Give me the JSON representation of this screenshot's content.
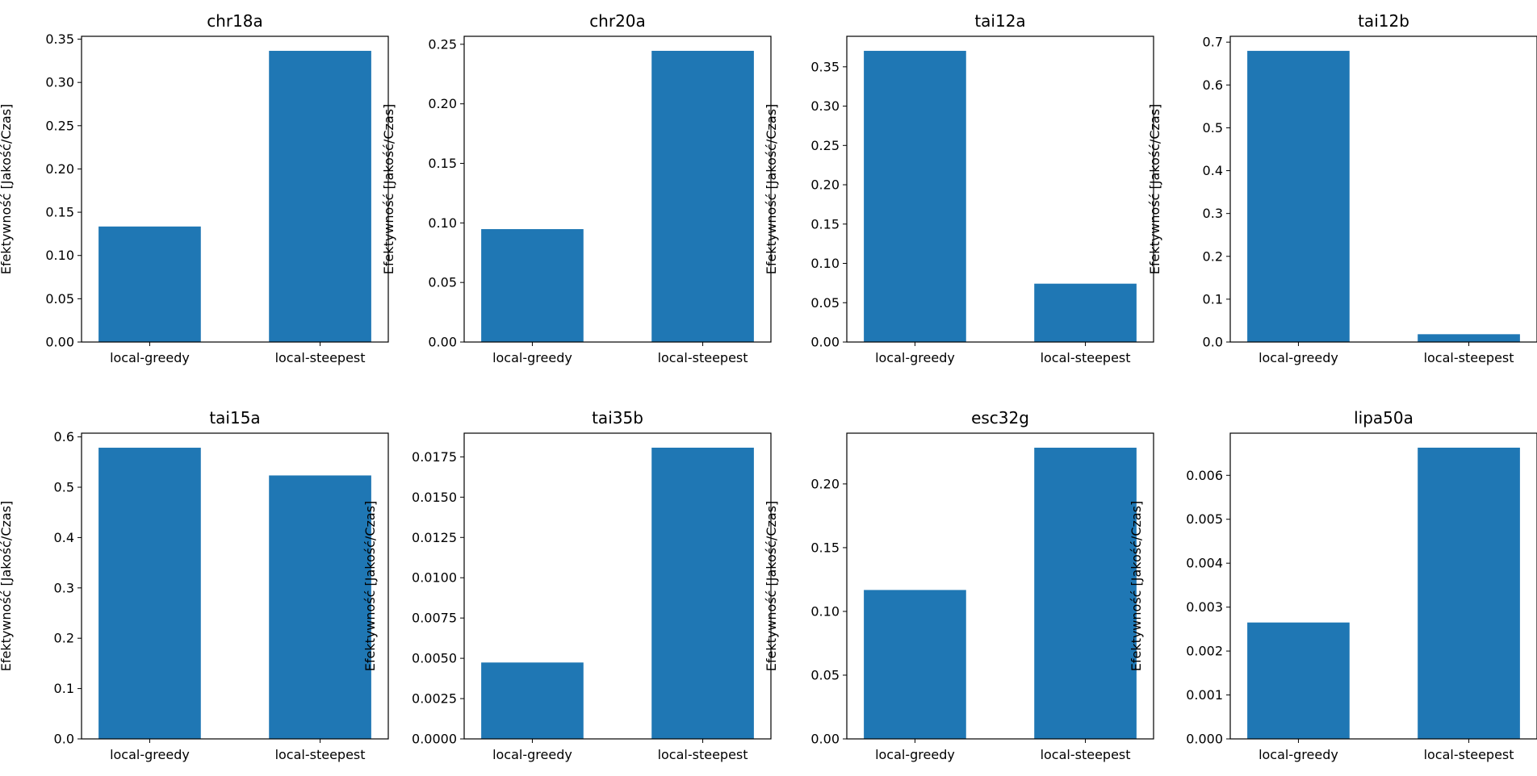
{
  "chart_data": [
    {
      "type": "bar",
      "title": "chr18a",
      "categories": [
        "local-greedy",
        "local-steepest"
      ],
      "values": [
        0.1335,
        0.3365
      ],
      "ylabel": "Efektywność [Jakość/Czas]",
      "ylim": [
        0,
        0.3533
      ],
      "yticks": [
        "0.00",
        "0.05",
        "0.10",
        "0.15",
        "0.20",
        "0.25",
        "0.30",
        "0.35"
      ],
      "color": "#1f77b4"
    },
    {
      "type": "bar",
      "title": "chr20a",
      "categories": [
        "local-greedy",
        "local-steepest"
      ],
      "values": [
        0.0948,
        0.2445
      ],
      "ylabel": "Efektywność [Jakość/Czas]",
      "ylim": [
        0,
        0.2567
      ],
      "yticks": [
        "0.00",
        "0.05",
        "0.10",
        "0.15",
        "0.20",
        "0.25"
      ],
      "color": "#1f77b4"
    },
    {
      "type": "bar",
      "title": "tai12a",
      "categories": [
        "local-greedy",
        "local-steepest"
      ],
      "values": [
        0.3703,
        0.0742
      ],
      "ylabel": "Efektywność [Jakość/Czas]",
      "ylim": [
        0,
        0.3888
      ],
      "yticks": [
        "0.00",
        "0.05",
        "0.10",
        "0.15",
        "0.20",
        "0.25",
        "0.30",
        "0.35"
      ],
      "color": "#1f77b4"
    },
    {
      "type": "bar",
      "title": "tai12b",
      "categories": [
        "local-greedy",
        "local-steepest"
      ],
      "values": [
        0.6796,
        0.0182
      ],
      "ylabel": "Efektywność [Jakość/Czas]",
      "ylim": [
        0,
        0.7136
      ],
      "yticks": [
        "0.0",
        "0.1",
        "0.2",
        "0.3",
        "0.4",
        "0.5",
        "0.6",
        "0.7"
      ],
      "color": "#1f77b4"
    },
    {
      "type": "bar",
      "title": "tai15a",
      "categories": [
        "local-greedy",
        "local-steepest"
      ],
      "values": [
        0.5785,
        0.5234
      ],
      "ylabel": "Efektywność [Jakość/Czas]",
      "ylim": [
        0,
        0.6074
      ],
      "yticks": [
        "0.0",
        "0.1",
        "0.2",
        "0.3",
        "0.4",
        "0.5",
        "0.6"
      ],
      "color": "#1f77b4"
    },
    {
      "type": "bar",
      "title": "tai35b",
      "categories": [
        "local-greedy",
        "local-steepest"
      ],
      "values": [
        0.00474,
        0.01807
      ],
      "ylabel": "Efektywność [Jakość/Czas]",
      "ylim": [
        0,
        0.01897
      ],
      "yticks": [
        "0.0000",
        "0.0025",
        "0.0050",
        "0.0075",
        "0.0100",
        "0.0125",
        "0.0150",
        "0.0175"
      ],
      "color": "#1f77b4"
    },
    {
      "type": "bar",
      "title": "esc32g",
      "categories": [
        "local-greedy",
        "local-steepest"
      ],
      "values": [
        0.1168,
        0.2284
      ],
      "ylabel": "Efektywność [Jakość/Czas]",
      "ylim": [
        0,
        0.2398
      ],
      "yticks": [
        "0.00",
        "0.05",
        "0.10",
        "0.15",
        "0.20"
      ],
      "color": "#1f77b4"
    },
    {
      "type": "bar",
      "title": "lipa50a",
      "categories": [
        "local-greedy",
        "local-steepest"
      ],
      "values": [
        0.00265,
        0.00663
      ],
      "ylabel": "Efektywność [Jakość/Czas]",
      "ylim": [
        0,
        0.00696
      ],
      "yticks": [
        "0.000",
        "0.001",
        "0.002",
        "0.003",
        "0.004",
        "0.005",
        "0.006"
      ],
      "color": "#1f77b4"
    }
  ]
}
